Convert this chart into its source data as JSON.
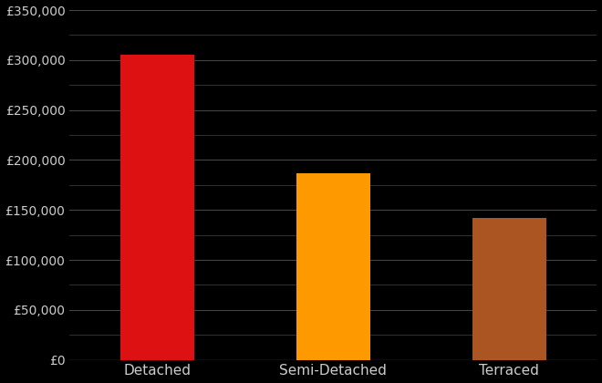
{
  "categories": [
    "Detached",
    "Semi-Detached",
    "Terraced"
  ],
  "values": [
    305000,
    187000,
    142000
  ],
  "bar_colors": [
    "#dd1111",
    "#ff9900",
    "#aa5522"
  ],
  "background_color": "#000000",
  "text_color": "#cccccc",
  "grid_color": "#444444",
  "ylim": [
    0,
    350000
  ],
  "ytick_major_step": 50000,
  "ytick_minor_step": 25000,
  "bar_width": 0.42,
  "figwidth": 6.6,
  "figheight": 4.2,
  "dpi": 100
}
